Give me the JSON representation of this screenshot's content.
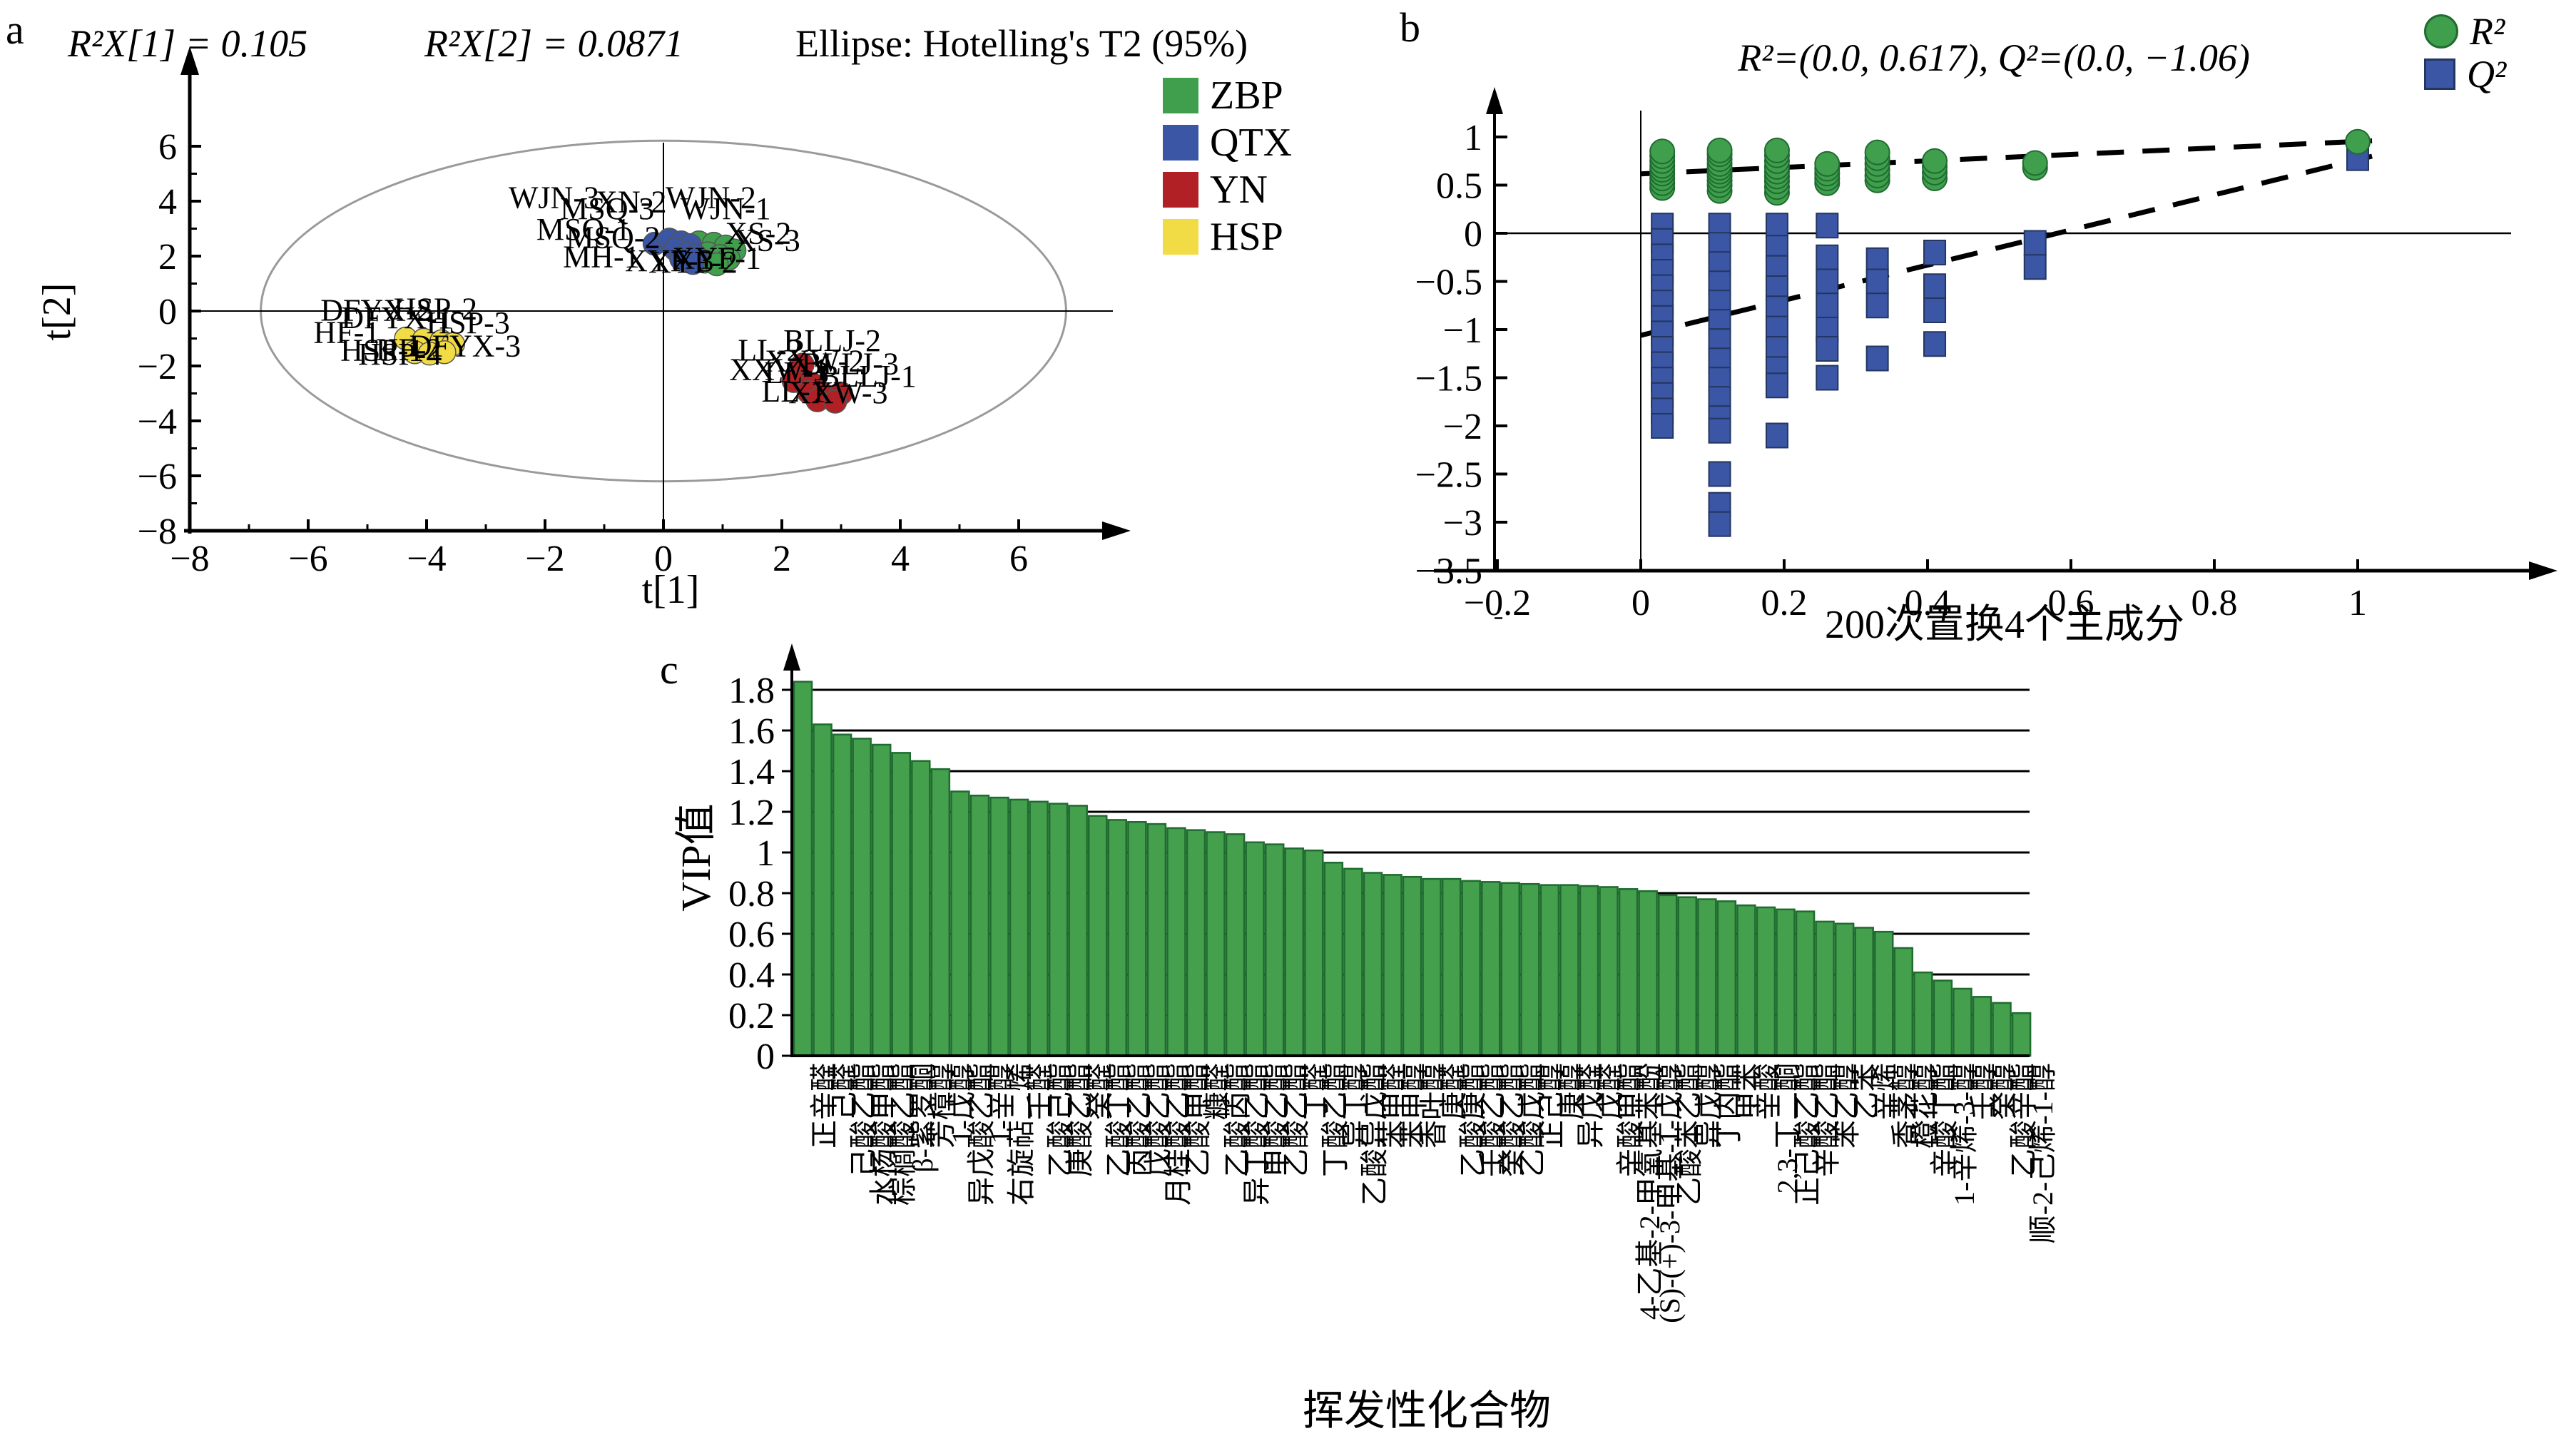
{
  "panel_a": {
    "letter": "a",
    "titles": [
      "R²X[1] = 0.105",
      "R²X[2] = 0.0871",
      "Ellipse: Hotelling's T2 (95%)"
    ],
    "xlabel": "t[1]",
    "ylabel": "t[2]",
    "legend": [
      {
        "label": "ZBP",
        "color": "#3f9f4c"
      },
      {
        "label": "QTX",
        "color": "#3a56a5"
      },
      {
        "label": "YN",
        "color": "#b02025"
      },
      {
        "label": "HSP",
        "color": "#f2dc45"
      }
    ]
  },
  "panel_b": {
    "letter": "b",
    "title": "R²=(0.0, 0.617), Q²=(0.0, −1.06)",
    "xlabel": "200次置换4个主成分",
    "legend": [
      {
        "label": "R²",
        "color": "#3f9f4c",
        "shape": "circle"
      },
      {
        "label": "Q²",
        "color": "#3a56a5",
        "shape": "square"
      }
    ]
  },
  "panel_c": {
    "letter": "c",
    "ylabel": "VIP值",
    "xlabel": "挥发性化合物"
  },
  "chart_data": [
    {
      "id": "score_plot",
      "type": "scatter",
      "title": "Ellipse: Hotelling's T2 (95%)",
      "subtitles": [
        "R²X[1] = 0.105",
        "R²X[2] = 0.0871"
      ],
      "xlabel": "t[1]",
      "ylabel": "t[2]",
      "xlim": [
        -8,
        7.4
      ],
      "ylim": [
        -8,
        7.2
      ],
      "xticks": [
        -8,
        -6,
        -4,
        -2,
        0,
        2,
        4,
        6
      ],
      "yticks": [
        -8,
        -6,
        -4,
        -2,
        0,
        2,
        4,
        6
      ],
      "ellipse": {
        "cx": 0,
        "cy": 0,
        "rx": 6.8,
        "ry": 6.2,
        "label": "Hotelling's T2 (95%)"
      },
      "series": [
        {
          "name": "ZBP",
          "color": "#3f9f4c",
          "points": [
            [
              0.6,
              2.5
            ],
            [
              0.85,
              2.45
            ],
            [
              1.05,
              2.35
            ],
            [
              1.2,
              2.2
            ],
            [
              0.75,
              2.1
            ],
            [
              0.95,
              2.0
            ],
            [
              1.1,
              1.9
            ],
            [
              0.7,
              1.8
            ],
            [
              0.9,
              1.7
            ]
          ]
        },
        {
          "name": "QTX",
          "color": "#3a56a5",
          "points": [
            [
              -0.15,
              2.45
            ],
            [
              0.1,
              2.6
            ],
            [
              0.3,
              2.5
            ],
            [
              0.45,
              2.4
            ],
            [
              0.2,
              2.25
            ],
            [
              0.4,
              2.1
            ],
            [
              0.55,
              2.0
            ],
            [
              0.3,
              1.9
            ],
            [
              0.5,
              1.75
            ]
          ]
        },
        {
          "name": "YN",
          "color": "#b02025",
          "points": [
            [
              2.35,
              -1.95
            ],
            [
              2.2,
              -2.55
            ],
            [
              2.5,
              -2.65
            ],
            [
              2.45,
              -2.95
            ],
            [
              2.7,
              -3.05
            ],
            [
              3.0,
              -3.0
            ],
            [
              2.6,
              -3.25
            ],
            [
              2.9,
              -3.3
            ]
          ]
        },
        {
          "name": "HSP",
          "color": "#f2dc45",
          "points": [
            [
              -4.35,
              -1.0
            ],
            [
              -4.05,
              -1.05
            ],
            [
              -3.75,
              -1.1
            ],
            [
              -3.55,
              -1.2
            ],
            [
              -4.2,
              -1.5
            ],
            [
              -3.95,
              -1.55
            ],
            [
              -3.7,
              -1.5
            ]
          ]
        }
      ],
      "point_labels": [
        {
          "text": "WJN-3",
          "x": -1.85,
          "y": 3.75
        },
        {
          "text": "XN-2",
          "x": -0.55,
          "y": 3.6
        },
        {
          "text": "WJN-2",
          "x": 0.8,
          "y": 3.75
        },
        {
          "text": "MSQ-3",
          "x": -0.95,
          "y": 3.35
        },
        {
          "text": "WJN-1",
          "x": 1.05,
          "y": 3.35
        },
        {
          "text": "MSQ-1",
          "x": -1.35,
          "y": 2.6
        },
        {
          "text": "MSQ-2",
          "x": -0.85,
          "y": 2.3
        },
        {
          "text": "XS-2",
          "x": 1.6,
          "y": 2.45
        },
        {
          "text": "XS-3",
          "x": 1.75,
          "y": 2.2
        },
        {
          "text": "MH-1",
          "x": -1.05,
          "y": 1.6
        },
        {
          "text": "XYF-3",
          "x": 0.1,
          "y": 1.45
        },
        {
          "text": "XYF-2",
          "x": 0.5,
          "y": 1.4
        },
        {
          "text": "XYF-1",
          "x": 0.9,
          "y": 1.55
        },
        {
          "text": "DFYX-2",
          "x": -4.85,
          "y": -0.35
        },
        {
          "text": "HSP-2",
          "x": -3.85,
          "y": -0.3
        },
        {
          "text": "DFYX-1",
          "x": -4.5,
          "y": -0.62
        },
        {
          "text": "HSP-3",
          "x": -3.3,
          "y": -0.8
        },
        {
          "text": "HF-1",
          "x": -5.35,
          "y": -1.15
        },
        {
          "text": "HSP-1",
          "x": -4.75,
          "y": -1.8
        },
        {
          "text": "HF-2",
          "x": -4.3,
          "y": -1.78
        },
        {
          "text": "DFYX-3",
          "x": -3.35,
          "y": -1.65
        },
        {
          "text": "HSP-4",
          "x": -4.45,
          "y": -1.95
        },
        {
          "text": "BLLJ-2",
          "x": 2.85,
          "y": -1.45
        },
        {
          "text": "LL-2",
          "x": 1.8,
          "y": -1.8
        },
        {
          "text": "XXW-2",
          "x": 2.55,
          "y": -2.2
        },
        {
          "text": "BLLJ-3",
          "x": 3.15,
          "y": -2.3
        },
        {
          "text": "XXW-1",
          "x": 1.95,
          "y": -2.5
        },
        {
          "text": "LL-3",
          "x": 2.25,
          "y": -2.62
        },
        {
          "text": "BLLJ-1",
          "x": 3.45,
          "y": -2.75
        },
        {
          "text": "LL-1",
          "x": 2.2,
          "y": -3.3
        },
        {
          "text": "XXW-3",
          "x": 2.95,
          "y": -3.35
        }
      ]
    },
    {
      "id": "permutation_plot",
      "type": "scatter",
      "title": "R²=(0.0, 0.617), Q²=(0.0, −1.06)",
      "xlabel": "200次置换4个主成分",
      "xlim": [
        -0.2,
        1.17
      ],
      "ylim": [
        -3.5,
        1.25
      ],
      "xticks": [
        -0.2,
        0,
        0.2,
        0.4,
        0.6,
        0.8,
        1
      ],
      "yticks": [
        1,
        0.5,
        0,
        -0.5,
        -1,
        -1.5,
        -2,
        -2.5,
        -3,
        -3.5
      ],
      "legend_position": "top-right",
      "series": [
        {
          "name": "R²",
          "marker": "circle",
          "color": "#3f9f4c",
          "points": [
            [
              0.03,
              0.47
            ],
            [
              0.03,
              0.52
            ],
            [
              0.03,
              0.57
            ],
            [
              0.03,
              0.62
            ],
            [
              0.03,
              0.66
            ],
            [
              0.03,
              0.7
            ],
            [
              0.03,
              0.75
            ],
            [
              0.03,
              0.8
            ],
            [
              0.03,
              0.85
            ],
            [
              0.11,
              0.44
            ],
            [
              0.11,
              0.5
            ],
            [
              0.11,
              0.55
            ],
            [
              0.11,
              0.6
            ],
            [
              0.11,
              0.64
            ],
            [
              0.11,
              0.68
            ],
            [
              0.11,
              0.72
            ],
            [
              0.11,
              0.77
            ],
            [
              0.11,
              0.82
            ],
            [
              0.11,
              0.86
            ],
            [
              0.19,
              0.42
            ],
            [
              0.19,
              0.48
            ],
            [
              0.19,
              0.54
            ],
            [
              0.19,
              0.59
            ],
            [
              0.19,
              0.64
            ],
            [
              0.19,
              0.69
            ],
            [
              0.19,
              0.75
            ],
            [
              0.19,
              0.81
            ],
            [
              0.19,
              0.86
            ],
            [
              0.26,
              0.52
            ],
            [
              0.26,
              0.57
            ],
            [
              0.26,
              0.62
            ],
            [
              0.26,
              0.67
            ],
            [
              0.26,
              0.72
            ],
            [
              0.33,
              0.55
            ],
            [
              0.33,
              0.6
            ],
            [
              0.33,
              0.66
            ],
            [
              0.33,
              0.72
            ],
            [
              0.33,
              0.78
            ],
            [
              0.33,
              0.84
            ],
            [
              0.41,
              0.57
            ],
            [
              0.41,
              0.63
            ],
            [
              0.41,
              0.69
            ],
            [
              0.41,
              0.75
            ],
            [
              0.55,
              0.68
            ],
            [
              0.55,
              0.73
            ],
            [
              1.0,
              0.95
            ]
          ]
        },
        {
          "name": "Q²",
          "marker": "square",
          "color": "#3a56a5",
          "points": [
            [
              0.03,
              0.08
            ],
            [
              0.03,
              -0.08
            ],
            [
              0.03,
              -0.24
            ],
            [
              0.03,
              -0.4
            ],
            [
              0.03,
              -0.56
            ],
            [
              0.03,
              -0.72
            ],
            [
              0.03,
              -0.88
            ],
            [
              0.03,
              -1.04
            ],
            [
              0.03,
              -1.2
            ],
            [
              0.03,
              -1.36
            ],
            [
              0.03,
              -1.52
            ],
            [
              0.03,
              -1.68
            ],
            [
              0.03,
              -1.84
            ],
            [
              0.03,
              -2.0
            ],
            [
              0.11,
              0.52
            ],
            [
              0.11,
              0.08
            ],
            [
              0.11,
              -0.12
            ],
            [
              0.11,
              -0.32
            ],
            [
              0.11,
              -0.52
            ],
            [
              0.11,
              -0.72
            ],
            [
              0.11,
              -0.92
            ],
            [
              0.11,
              -1.12
            ],
            [
              0.11,
              -1.32
            ],
            [
              0.11,
              -1.52
            ],
            [
              0.11,
              -1.72
            ],
            [
              0.11,
              -1.92
            ],
            [
              0.11,
              -2.05
            ],
            [
              0.11,
              -2.5
            ],
            [
              0.11,
              -2.82
            ],
            [
              0.11,
              -3.02
            ],
            [
              0.19,
              0.08
            ],
            [
              0.19,
              -0.15
            ],
            [
              0.19,
              -0.36
            ],
            [
              0.19,
              -0.57
            ],
            [
              0.19,
              -0.78
            ],
            [
              0.19,
              -0.99
            ],
            [
              0.19,
              -1.2
            ],
            [
              0.19,
              -1.41
            ],
            [
              0.19,
              -1.58
            ],
            [
              0.19,
              -2.1
            ],
            [
              0.26,
              0.08
            ],
            [
              0.26,
              -0.25
            ],
            [
              0.26,
              -0.5
            ],
            [
              0.26,
              -0.75
            ],
            [
              0.26,
              -1.0
            ],
            [
              0.26,
              -1.2
            ],
            [
              0.26,
              -1.5
            ],
            [
              0.33,
              -0.28
            ],
            [
              0.33,
              -0.5
            ],
            [
              0.33,
              -0.75
            ],
            [
              0.33,
              -1.3
            ],
            [
              0.41,
              -0.2
            ],
            [
              0.41,
              -0.55
            ],
            [
              0.41,
              -0.8
            ],
            [
              0.41,
              -1.15
            ],
            [
              0.55,
              -0.1
            ],
            [
              0.55,
              -0.35
            ],
            [
              1.0,
              0.78
            ]
          ]
        }
      ],
      "trend_lines": [
        {
          "name": "R² regression",
          "style": "dashed",
          "from": [
            0,
            0.617
          ],
          "to": [
            1.02,
            0.96
          ]
        },
        {
          "name": "Q² regression",
          "style": "dashed",
          "from": [
            0,
            -1.06
          ],
          "to": [
            1.02,
            0.8
          ]
        }
      ]
    },
    {
      "id": "vip_plot",
      "type": "bar",
      "ylabel": "VIP值",
      "xlabel": "挥发性化合物",
      "ylim": [
        0,
        1.9
      ],
      "yticks": [
        0,
        0.2,
        0.4,
        0.6,
        0.8,
        1,
        1.2,
        1.4,
        1.6,
        1.8
      ],
      "grid": true,
      "bar_color": "#44a04c",
      "bar_stroke": "#1f6b30",
      "categories": [
        "正辛醛",
        "己醛",
        "己酸乙酯",
        "水杨酸甲酯",
        "棕榈酸乙酯",
        "β-紫罗酮",
        "芳樟醇",
        "1-戊醇",
        "异戊酸乙酯",
        "1-辛醇",
        "右旋萜二烯",
        "壬醛",
        "乙酸己酯",
        "庚酸乙酯",
        "癸醛",
        "乙酸丁酯",
        "丙酸乙酯",
        "戊酸乙酯",
        "月桂酸乙酯",
        "乙酸甲酯",
        "糠醛",
        "乙酸丙酯",
        "异丁酸乙酯",
        "甲酸乙酯",
        "乙酸乙酯",
        "丁醛",
        "丁酸乙酯",
        "异丁醇",
        "乙酸异戊酯",
        "苯甲醛",
        "苯甲醇",
        "香叶醇",
        "庚醛",
        "乙酸庚酯",
        "壬酸乙酯",
        "癸酸乙酯",
        "乙酸戊酯",
        "正己醇",
        "庚醇",
        "异戊醛",
        "戊醛",
        "辛酸甲酯",
        "4-乙基-2-甲氧基苯酚",
        "(S)-(+)-3-甲基-1-戊醇",
        "乙酸苯乙酯",
        "异戊醇",
        "丁内酯",
        "甲苯",
        "辛酸",
        "2,3-丁二酮",
        "正己酸乙酯",
        "辛酸乙酯",
        "苯乙醇",
        "乙苯",
        "辛烯",
        "香茅醇",
        "橙花醇",
        "辛酸丁酯",
        "1-辛烯-3-醇",
        "壬醇",
        "癸醇",
        "乙酸辛酯",
        "顺-2-己烯-1-醇"
      ],
      "values": [
        1.84,
        1.63,
        1.58,
        1.56,
        1.53,
        1.49,
        1.45,
        1.41,
        1.3,
        1.28,
        1.27,
        1.26,
        1.25,
        1.24,
        1.23,
        1.18,
        1.16,
        1.15,
        1.14,
        1.12,
        1.11,
        1.1,
        1.09,
        1.05,
        1.04,
        1.02,
        1.01,
        0.95,
        0.92,
        0.9,
        0.89,
        0.88,
        0.87,
        0.87,
        0.86,
        0.855,
        0.85,
        0.845,
        0.84,
        0.84,
        0.835,
        0.83,
        0.82,
        0.81,
        0.79,
        0.78,
        0.77,
        0.76,
        0.74,
        0.73,
        0.72,
        0.71,
        0.66,
        0.65,
        0.63,
        0.61,
        0.53,
        0.41,
        0.37,
        0.33,
        0.29,
        0.26,
        0.21
      ]
    }
  ]
}
